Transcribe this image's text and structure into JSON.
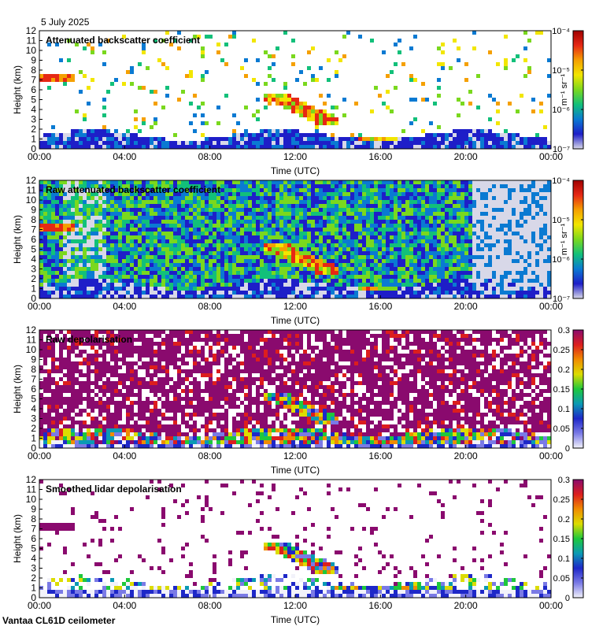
{
  "date": "5 July 2025",
  "footer": "Vantaa CL61D ceilometer",
  "x_tick_labels": [
    "00:00",
    "04:00",
    "08:00",
    "12:00",
    "16:00",
    "20:00",
    "00:00"
  ],
  "colors": {
    "log_colorbar": [
      "#d8d8e8",
      "#1e1ec8",
      "#0a7ad2",
      "#12c07a",
      "#7ad81e",
      "#f2e600",
      "#f5a000",
      "#e62814",
      "#a00000"
    ],
    "depol_colorbar": [
      "#f2f2fa",
      "#7a7ae6",
      "#1e28c8",
      "#0a9ab4",
      "#1ec83c",
      "#dcdc00",
      "#f08c00",
      "#dc1e1e",
      "#8a0a6e"
    ]
  },
  "chart_data": [
    {
      "type": "heatmap",
      "title": "Attenuated backscatter coefficient",
      "xlabel": "Time (UTC)",
      "ylabel": "Height (km)",
      "xlim": [
        "00:00",
        "00:00"
      ],
      "ylim": [
        0,
        12
      ],
      "y_ticks": [
        0,
        1,
        2,
        3,
        4,
        5,
        6,
        7,
        8,
        9,
        10,
        11,
        12
      ],
      "colorbar": {
        "scale": "log",
        "unit": "m⁻¹ sr⁻¹",
        "ticks": [
          "10⁻⁷",
          "10⁻⁶",
          "10⁻⁵",
          "10⁻⁴"
        ]
      }
    },
    {
      "type": "heatmap",
      "title": "Raw attenuated backscatter coefficient",
      "xlabel": "Time (UTC)",
      "ylabel": "Height (km)",
      "xlim": [
        "00:00",
        "00:00"
      ],
      "ylim": [
        0,
        12
      ],
      "y_ticks": [
        0,
        1,
        2,
        3,
        4,
        5,
        6,
        7,
        8,
        9,
        10,
        11,
        12
      ],
      "colorbar": {
        "scale": "log",
        "unit": "m⁻¹ sr⁻¹",
        "ticks": [
          "10⁻⁷",
          "10⁻⁶",
          "10⁻⁵",
          "10⁻⁴"
        ]
      }
    },
    {
      "type": "heatmap",
      "title": "Raw depolarisation",
      "xlabel": "Time (UTC)",
      "ylabel": "Height (km)",
      "xlim": [
        "00:00",
        "00:00"
      ],
      "ylim": [
        0,
        12
      ],
      "y_ticks": [
        0,
        1,
        2,
        3,
        4,
        5,
        6,
        7,
        8,
        9,
        10,
        11,
        12
      ],
      "colorbar": {
        "scale": "linear",
        "unit": "",
        "ticks": [
          "0",
          "0.05",
          "0.1",
          "0.15",
          "0.2",
          "0.25",
          "0.3"
        ]
      }
    },
    {
      "type": "heatmap",
      "title": "Smoothed lidar depolarisation",
      "xlabel": "Time (UTC)",
      "ylabel": "Height (km)",
      "xlim": [
        "00:00",
        "00:00"
      ],
      "ylim": [
        0,
        12
      ],
      "y_ticks": [
        0,
        1,
        2,
        3,
        4,
        5,
        6,
        7,
        8,
        9,
        10,
        11,
        12
      ],
      "colorbar": {
        "scale": "linear",
        "unit": "",
        "ticks": [
          "0",
          "0.05",
          "0.1",
          "0.15",
          "0.2",
          "0.25",
          "0.3"
        ]
      }
    }
  ]
}
